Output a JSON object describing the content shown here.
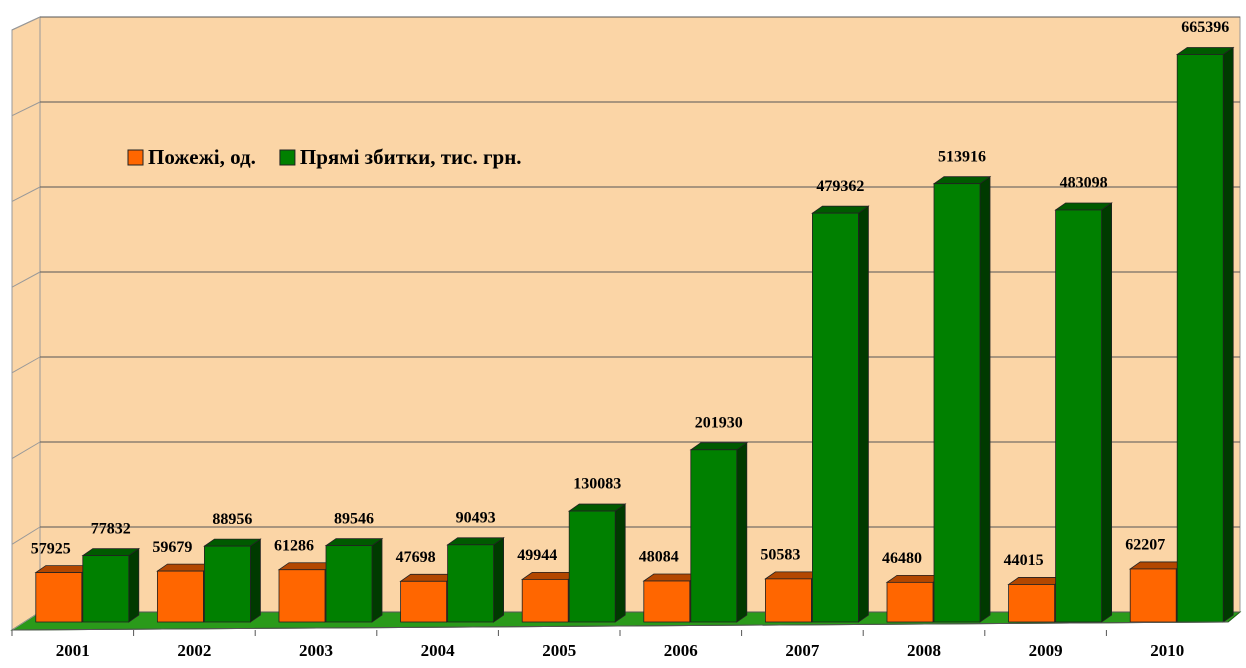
{
  "chart_data": {
    "type": "bar",
    "categories": [
      "2001",
      "2002",
      "2003",
      "2004",
      "2005",
      "2006",
      "2007",
      "2008",
      "2009",
      "2010"
    ],
    "series": [
      {
        "name": "Пожежі, од.",
        "color": "#ff6600",
        "values": [
          57925,
          59679,
          61286,
          47698,
          49944,
          48084,
          50583,
          46480,
          44015,
          62207
        ]
      },
      {
        "name": "Прямі збитки, тис. грн.",
        "color": "#008000",
        "values": [
          77832,
          88956,
          89546,
          90493,
          130083,
          201930,
          479362,
          513916,
          483098,
          665396
        ]
      }
    ],
    "ylim": [
      0,
      700000
    ],
    "yticks": [
      0,
      100000,
      200000,
      300000,
      400000,
      500000,
      600000,
      700000
    ],
    "grid": true,
    "legend": "upper left"
  }
}
